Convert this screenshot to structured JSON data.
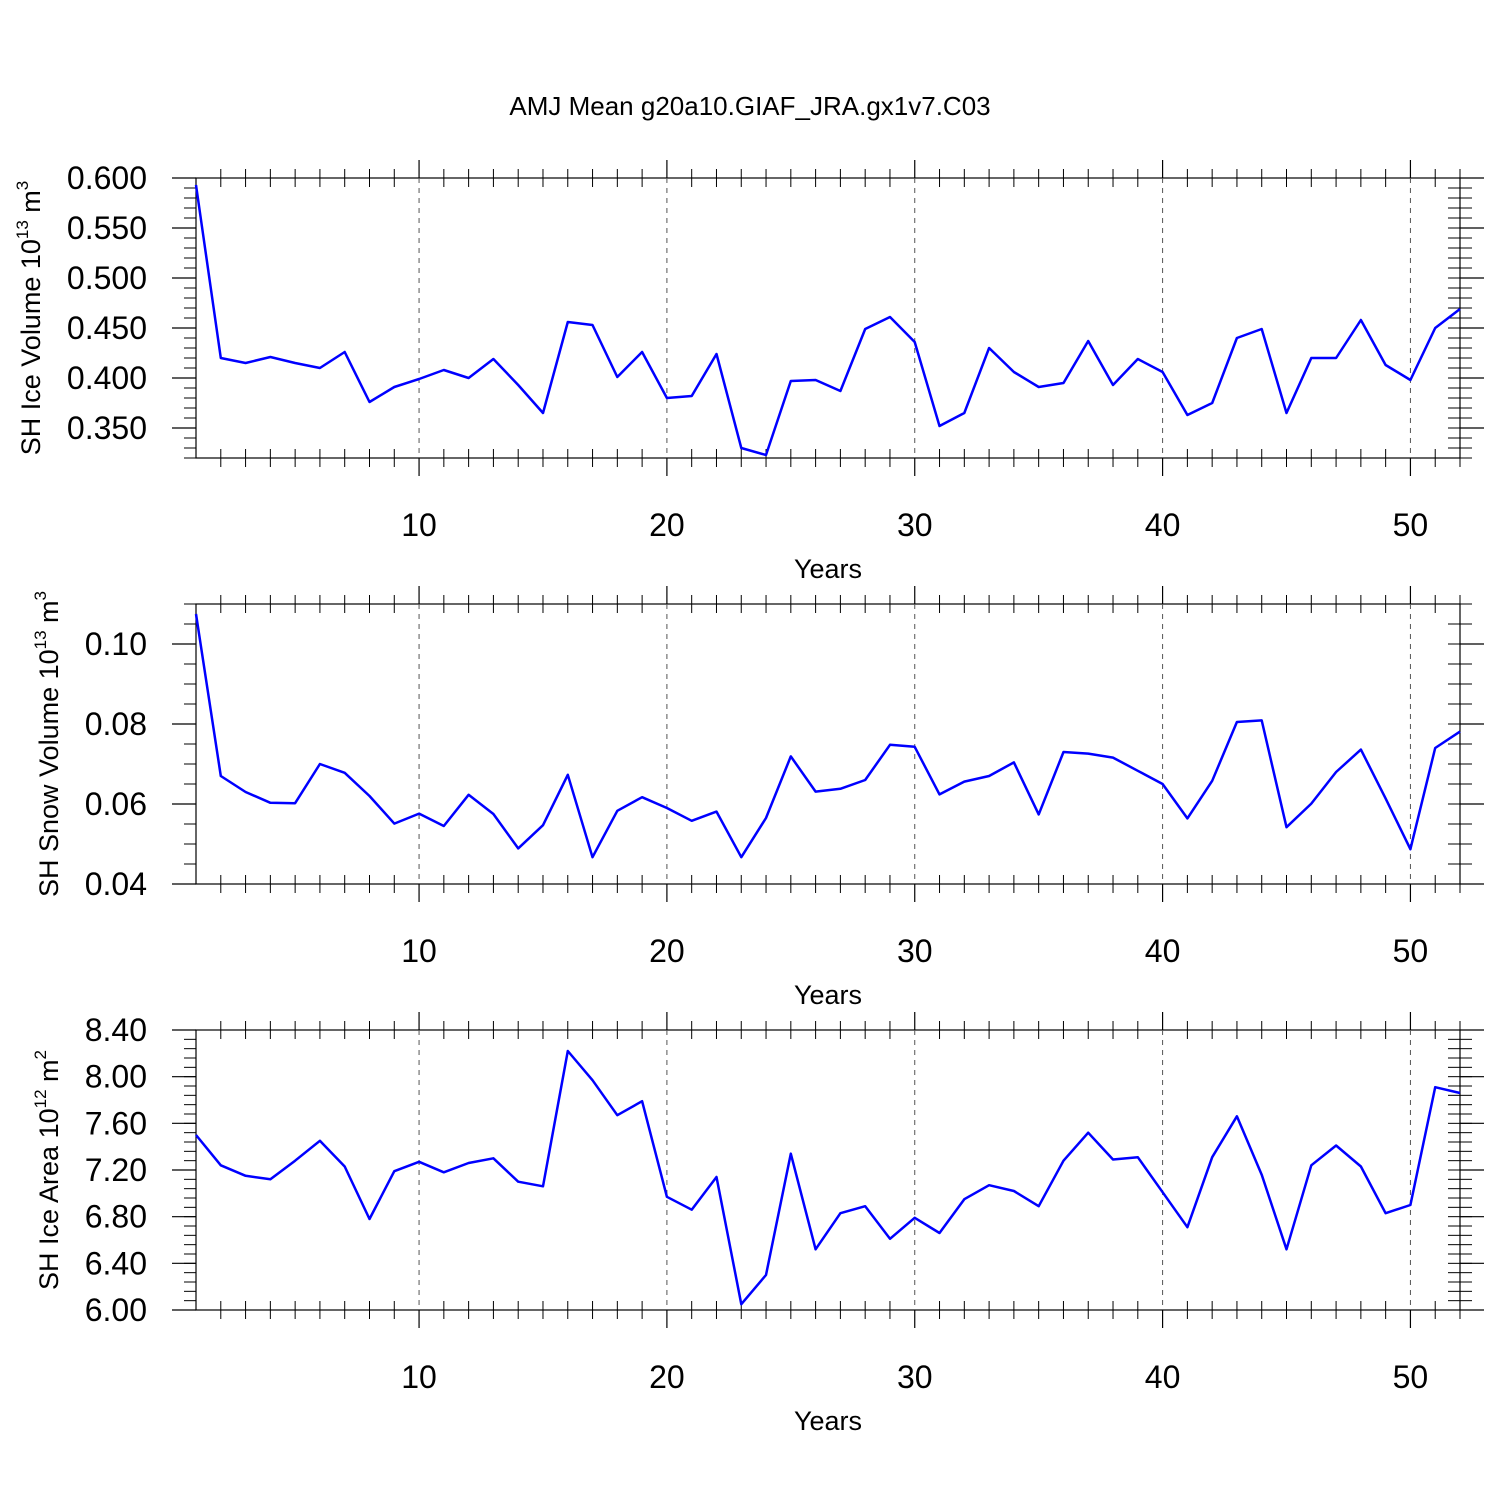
{
  "title": "AMJ Mean g20a10.GIAF_JRA.gx1v7.C03",
  "line_color": "#0000ff",
  "chart_data": [
    {
      "type": "line",
      "xlabel": "Years",
      "ylabel": {
        "main": "SH Ice Volume 10",
        "exp": "13",
        "unit": " m",
        "unit_exp": "3"
      },
      "xlim": [
        1,
        52
      ],
      "ylim": [
        0.32,
        0.6
      ],
      "xticks": [
        "10",
        "20",
        "30",
        "40",
        "50"
      ],
      "yticks": [
        "0.600",
        "0.550",
        "0.500",
        "0.450",
        "0.400",
        "0.350"
      ],
      "x": [
        1,
        2,
        3,
        4,
        5,
        6,
        7,
        8,
        9,
        10,
        11,
        12,
        13,
        14,
        15,
        16,
        17,
        18,
        19,
        20,
        21,
        22,
        23,
        24,
        25,
        26,
        27,
        28,
        29,
        30,
        31,
        32,
        33,
        34,
        35,
        36,
        37,
        38,
        39,
        40,
        41,
        42,
        43,
        44,
        45,
        46,
        47,
        48,
        49,
        50,
        51,
        52
      ],
      "y": [
        0.593,
        0.42,
        0.415,
        0.421,
        0.415,
        0.41,
        0.426,
        0.376,
        0.391,
        0.399,
        0.408,
        0.4,
        0.419,
        0.393,
        0.365,
        0.456,
        0.453,
        0.401,
        0.426,
        0.38,
        0.382,
        0.424,
        0.33,
        0.323,
        0.397,
        0.398,
        0.387,
        0.449,
        0.461,
        0.436,
        0.352,
        0.365,
        0.43,
        0.406,
        0.391,
        0.395,
        0.437,
        0.393,
        0.419,
        0.406,
        0.363,
        0.375,
        0.44,
        0.449,
        0.365,
        0.42,
        0.42,
        0.458,
        0.413,
        0.398,
        0.45,
        0.469
      ]
    },
    {
      "type": "line",
      "xlabel": "Years",
      "ylabel": {
        "main": "SH Snow Volume 10",
        "exp": "13",
        "unit": " m",
        "unit_exp": "3"
      },
      "xlim": [
        1,
        52
      ],
      "ylim": [
        0.04,
        0.11
      ],
      "xticks": [
        "10",
        "20",
        "30",
        "40",
        "50"
      ],
      "yticks": [
        "0.10",
        "0.08",
        "0.06",
        "0.04"
      ],
      "x": [
        1,
        2,
        3,
        4,
        5,
        6,
        7,
        8,
        9,
        10,
        11,
        12,
        13,
        14,
        15,
        16,
        17,
        18,
        19,
        20,
        21,
        22,
        23,
        24,
        25,
        26,
        27,
        28,
        29,
        30,
        31,
        32,
        33,
        34,
        35,
        36,
        37,
        38,
        39,
        40,
        41,
        42,
        43,
        44,
        45,
        46,
        47,
        48,
        49,
        50,
        51,
        52
      ],
      "y": [
        0.1075,
        0.067,
        0.063,
        0.0603,
        0.0602,
        0.07,
        0.0678,
        0.062,
        0.0551,
        0.0576,
        0.0545,
        0.0623,
        0.0575,
        0.0489,
        0.0547,
        0.0673,
        0.0467,
        0.0583,
        0.0617,
        0.059,
        0.0558,
        0.0581,
        0.0467,
        0.0565,
        0.0719,
        0.0631,
        0.0638,
        0.066,
        0.0748,
        0.0743,
        0.0624,
        0.0656,
        0.067,
        0.0704,
        0.0574,
        0.073,
        0.0726,
        0.0716,
        0.0683,
        0.065,
        0.0564,
        0.0658,
        0.0805,
        0.0809,
        0.0542,
        0.0601,
        0.068,
        0.0736,
        0.0614,
        0.0487,
        0.074,
        0.0781
      ]
    },
    {
      "type": "line",
      "xlabel": "Years",
      "ylabel": {
        "main": "SH Ice Area 10",
        "exp": "12",
        "unit": " m",
        "unit_exp": "2"
      },
      "xlim": [
        1,
        52
      ],
      "ylim": [
        6.0,
        8.4
      ],
      "xticks": [
        "10",
        "20",
        "30",
        "40",
        "50"
      ],
      "yticks": [
        "8.40",
        "8.00",
        "7.60",
        "7.20",
        "6.80",
        "6.40",
        "6.00"
      ],
      "x": [
        1,
        2,
        3,
        4,
        5,
        6,
        7,
        8,
        9,
        10,
        11,
        12,
        13,
        14,
        15,
        16,
        17,
        18,
        19,
        20,
        21,
        22,
        23,
        24,
        25,
        26,
        27,
        28,
        29,
        30,
        31,
        32,
        33,
        34,
        35,
        36,
        37,
        38,
        39,
        40,
        41,
        42,
        43,
        44,
        45,
        46,
        47,
        48,
        49,
        50,
        51,
        52
      ],
      "y": [
        7.5,
        7.24,
        7.15,
        7.12,
        7.28,
        7.45,
        7.23,
        6.78,
        7.19,
        7.27,
        7.18,
        7.26,
        7.3,
        7.1,
        7.06,
        8.22,
        7.97,
        7.67,
        7.79,
        6.97,
        6.86,
        7.14,
        6.05,
        6.3,
        7.34,
        6.52,
        6.83,
        6.89,
        6.61,
        6.79,
        6.66,
        6.95,
        7.07,
        7.02,
        6.89,
        7.28,
        7.52,
        7.29,
        7.31,
        7.01,
        6.71,
        7.31,
        7.66,
        7.16,
        6.52,
        7.24,
        7.41,
        7.23,
        6.83,
        6.9,
        7.91,
        7.86
      ]
    }
  ]
}
